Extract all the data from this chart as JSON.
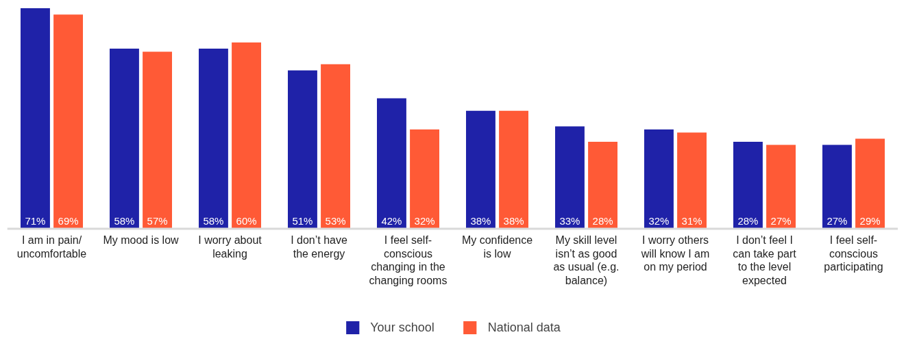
{
  "chart_data": {
    "type": "bar",
    "categories": [
      "I am in pain/ uncomfortable",
      "My mood is low",
      "I worry about leaking",
      "I don’t have the energy",
      "I feel self-conscious changing in the changing rooms",
      "My confidence is low",
      "My skill level isn’t as good as usual (e.g. balance)",
      "I worry others will know I am on my period",
      "I don’t feel I can take part to the level expected",
      "I feel self-conscious participating"
    ],
    "series": [
      {
        "name": "Your school",
        "color": "#1f22a8",
        "values": [
          71,
          58,
          58,
          51,
          42,
          38,
          33,
          32,
          28,
          27
        ],
        "value_labels": [
          "71%",
          "58%",
          "58%",
          "51%",
          "42%",
          "38%",
          "33%",
          "32%",
          "28%",
          "27%"
        ]
      },
      {
        "name": "National data",
        "color": "#ff5a36",
        "values": [
          69,
          57,
          60,
          53,
          32,
          38,
          28,
          31,
          27,
          29
        ],
        "value_labels": [
          "69%",
          "57%",
          "60%",
          "53%",
          "32%",
          "38%",
          "28%",
          "31%",
          "27%",
          "29%"
        ]
      }
    ],
    "legend": "bottom"
  }
}
